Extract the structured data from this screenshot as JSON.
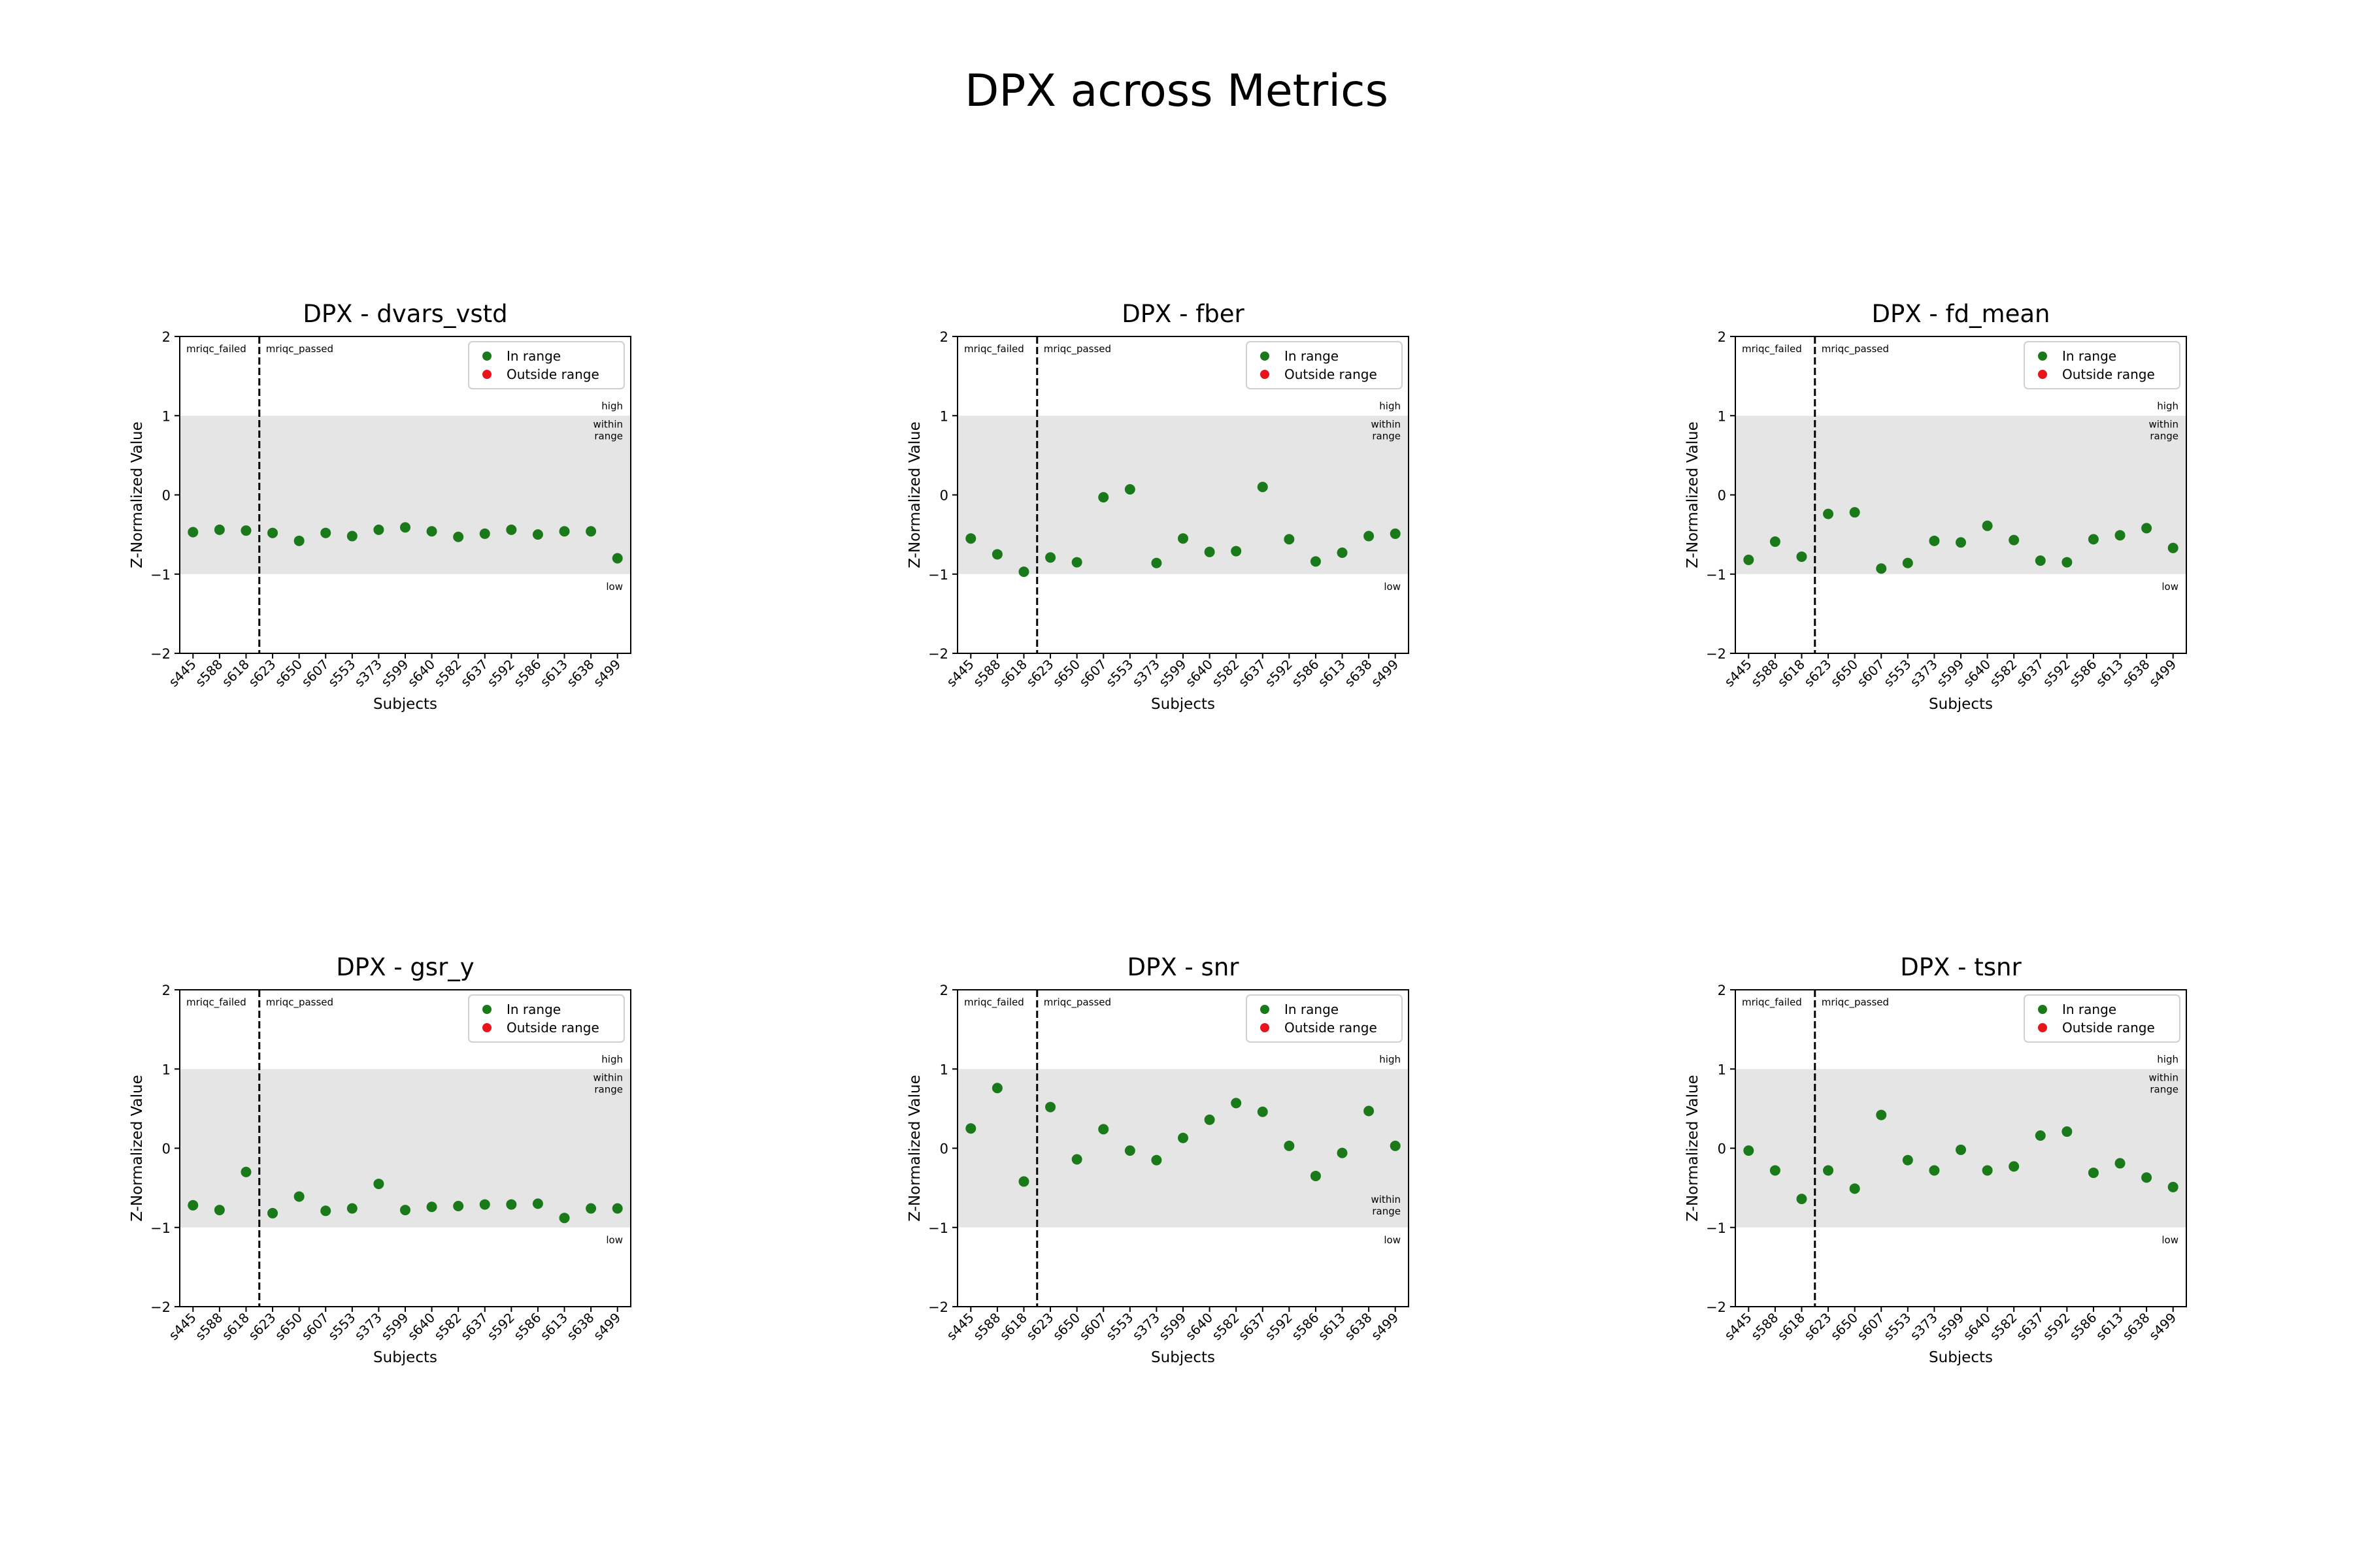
{
  "figure": {
    "title": "DPX across Metrics"
  },
  "chart_data": [
    {
      "type": "scatter",
      "title": "DPX - dvars_vstd",
      "xlabel": "Subjects",
      "ylabel": "Z-Normalized Value",
      "ylim": [
        -2,
        2
      ],
      "yticks": [
        -2,
        -1,
        0,
        1,
        2
      ],
      "categories": [
        "s445",
        "s588",
        "s618",
        "s623",
        "s650",
        "s607",
        "s553",
        "s373",
        "s599",
        "s640",
        "s582",
        "s637",
        "s592",
        "s586",
        "s613",
        "s638",
        "s499"
      ],
      "values": [
        -0.47,
        -0.44,
        -0.45,
        -0.48,
        -0.58,
        -0.48,
        -0.52,
        -0.44,
        -0.41,
        -0.46,
        -0.53,
        -0.49,
        -0.44,
        -0.5,
        -0.46,
        -0.46,
        -0.8
      ],
      "group_divider_after": "s618",
      "group_labels": [
        "mriqc_failed",
        "mriqc_passed"
      ],
      "band": {
        "range": [
          -1,
          1
        ],
        "labels": [
          "high",
          "within\nrange",
          "low"
        ]
      },
      "band_label_position": "top",
      "legend": [
        {
          "label": "In range",
          "color": "#1a7a1a"
        },
        {
          "label": "Outside range",
          "color": "#e8141a"
        }
      ],
      "legend_position": "top-right",
      "point_colors": [
        "#1a7a1a"
      ]
    },
    {
      "type": "scatter",
      "title": "DPX - fber",
      "xlabel": "Subjects",
      "ylabel": "Z-Normalized Value",
      "ylim": [
        -2,
        2
      ],
      "yticks": [
        -2,
        -1,
        0,
        1,
        2
      ],
      "categories": [
        "s445",
        "s588",
        "s618",
        "s623",
        "s650",
        "s607",
        "s553",
        "s373",
        "s599",
        "s640",
        "s582",
        "s637",
        "s592",
        "s586",
        "s613",
        "s638",
        "s499"
      ],
      "values": [
        -0.55,
        -0.75,
        -0.97,
        -0.79,
        -0.85,
        -0.03,
        0.07,
        -0.86,
        -0.55,
        -0.72,
        -0.71,
        0.1,
        -0.56,
        -0.84,
        -0.73,
        -0.52,
        -0.49
      ],
      "group_divider_after": "s618",
      "group_labels": [
        "mriqc_failed",
        "mriqc_passed"
      ],
      "band": {
        "range": [
          -1,
          1
        ],
        "labels": [
          "high",
          "within\nrange",
          "low"
        ]
      },
      "band_label_position": "top",
      "legend": [
        {
          "label": "In range",
          "color": "#1a7a1a"
        },
        {
          "label": "Outside range",
          "color": "#e8141a"
        }
      ],
      "legend_position": "top-right"
    },
    {
      "type": "scatter",
      "title": "DPX - fd_mean",
      "xlabel": "Subjects",
      "ylabel": "Z-Normalized Value",
      "ylim": [
        -2,
        2
      ],
      "yticks": [
        -2,
        -1,
        0,
        1,
        2
      ],
      "categories": [
        "s445",
        "s588",
        "s618",
        "s623",
        "s650",
        "s607",
        "s553",
        "s373",
        "s599",
        "s640",
        "s582",
        "s637",
        "s592",
        "s586",
        "s613",
        "s638",
        "s499"
      ],
      "values": [
        -0.82,
        -0.59,
        -0.78,
        -0.24,
        -0.22,
        -0.93,
        -0.86,
        -0.58,
        -0.6,
        -0.39,
        -0.57,
        -0.83,
        -0.85,
        -0.56,
        -0.51,
        -0.42,
        -0.67
      ],
      "group_divider_after": "s618",
      "group_labels": [
        "mriqc_failed",
        "mriqc_passed"
      ],
      "band": {
        "range": [
          -1,
          1
        ],
        "labels": [
          "high",
          "within\nrange",
          "low"
        ]
      },
      "band_label_position": "top",
      "legend": [
        {
          "label": "In range",
          "color": "#1a7a1a"
        },
        {
          "label": "Outside range",
          "color": "#e8141a"
        }
      ],
      "legend_position": "top-right"
    },
    {
      "type": "scatter",
      "title": "DPX - gsr_y",
      "xlabel": "Subjects",
      "ylabel": "Z-Normalized Value",
      "ylim": [
        -2,
        2
      ],
      "yticks": [
        -2,
        -1,
        0,
        1,
        2
      ],
      "categories": [
        "s445",
        "s588",
        "s618",
        "s623",
        "s650",
        "s607",
        "s553",
        "s373",
        "s599",
        "s640",
        "s582",
        "s637",
        "s592",
        "s586",
        "s613",
        "s638",
        "s499"
      ],
      "values": [
        -0.72,
        -0.78,
        -0.3,
        -0.82,
        -0.61,
        -0.79,
        -0.76,
        -0.45,
        -0.78,
        -0.74,
        -0.73,
        -0.71,
        -0.71,
        -0.7,
        -0.88,
        -0.76,
        -0.76
      ],
      "group_divider_after": "s618",
      "group_labels": [
        "mriqc_failed",
        "mriqc_passed"
      ],
      "band": {
        "range": [
          -1,
          1
        ],
        "labels": [
          "high",
          "within\nrange",
          "low"
        ]
      },
      "band_label_position": "top",
      "legend": [
        {
          "label": "In range",
          "color": "#1a7a1a"
        },
        {
          "label": "Outside range",
          "color": "#e8141a"
        }
      ],
      "legend_position": "top-right"
    },
    {
      "type": "scatter",
      "title": "DPX - snr",
      "xlabel": "Subjects",
      "ylabel": "Z-Normalized Value",
      "ylim": [
        -2,
        2
      ],
      "yticks": [
        -2,
        -1,
        0,
        1,
        2
      ],
      "categories": [
        "s445",
        "s588",
        "s618",
        "s623",
        "s650",
        "s607",
        "s553",
        "s373",
        "s599",
        "s640",
        "s582",
        "s637",
        "s592",
        "s586",
        "s613",
        "s638",
        "s499"
      ],
      "values": [
        0.25,
        0.76,
        -0.42,
        0.52,
        -0.14,
        0.24,
        -0.03,
        -0.15,
        0.13,
        0.36,
        0.57,
        0.46,
        0.03,
        -0.35,
        -0.06,
        0.47,
        0.03
      ],
      "group_divider_after": "s618",
      "group_labels": [
        "mriqc_failed",
        "mriqc_passed"
      ],
      "band": {
        "range": [
          -1,
          1
        ],
        "labels": [
          "high",
          "within\nrange",
          "low"
        ]
      },
      "band_label_position": "bottom",
      "legend": [
        {
          "label": "In range",
          "color": "#1a7a1a"
        },
        {
          "label": "Outside range",
          "color": "#e8141a"
        }
      ],
      "legend_position": "top-right"
    },
    {
      "type": "scatter",
      "title": "DPX - tsnr",
      "xlabel": "Subjects",
      "ylabel": "Z-Normalized Value",
      "ylim": [
        -2,
        2
      ],
      "yticks": [
        -2,
        -1,
        0,
        1,
        2
      ],
      "categories": [
        "s445",
        "s588",
        "s618",
        "s623",
        "s650",
        "s607",
        "s553",
        "s373",
        "s599",
        "s640",
        "s582",
        "s637",
        "s592",
        "s586",
        "s613",
        "s638",
        "s499"
      ],
      "values": [
        -0.03,
        -0.28,
        -0.64,
        -0.28,
        -0.51,
        0.42,
        -0.15,
        -0.28,
        -0.02,
        -0.28,
        -0.23,
        0.16,
        0.21,
        -0.31,
        -0.19,
        -0.37,
        -0.49
      ],
      "group_divider_after": "s618",
      "group_labels": [
        "mriqc_failed",
        "mriqc_passed"
      ],
      "band": {
        "range": [
          -1,
          1
        ],
        "labels": [
          "high",
          "within\nrange",
          "low"
        ]
      },
      "band_label_position": "top",
      "legend": [
        {
          "label": "In range",
          "color": "#1a7a1a"
        },
        {
          "label": "Outside range",
          "color": "#e8141a"
        }
      ],
      "legend_position": "top-right"
    }
  ]
}
